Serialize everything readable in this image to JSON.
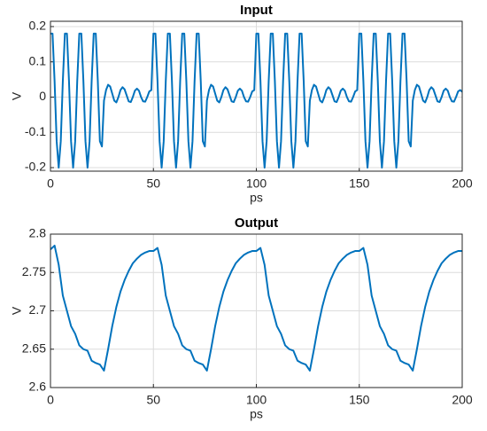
{
  "chart_data": [
    {
      "type": "line",
      "title": "Input",
      "x_label": "ps",
      "y_label": "V",
      "xlim": [
        0,
        200
      ],
      "ylim": [
        -0.21,
        0.215
      ],
      "xticks": [
        0,
        50,
        100,
        150,
        200
      ],
      "yticks": [
        -0.2,
        -0.1,
        0,
        0.1,
        0.2
      ],
      "grid": true,
      "x": [
        0,
        1,
        2,
        3,
        4,
        5,
        6,
        7,
        8,
        9,
        10,
        11,
        12,
        13,
        14,
        15,
        16,
        17,
        18,
        19,
        20,
        21,
        22,
        23,
        24,
        25,
        26,
        27,
        28,
        29,
        30,
        31,
        32,
        33,
        34,
        35,
        36,
        37,
        38,
        39,
        40,
        41,
        42,
        43,
        44,
        45,
        46,
        47,
        48,
        49,
        50,
        51,
        52,
        53,
        54,
        55,
        56,
        57,
        58,
        59,
        60,
        61,
        62,
        63,
        64,
        65,
        66,
        67,
        68,
        69,
        70,
        71,
        72,
        73,
        74,
        75,
        76,
        77,
        78,
        79,
        80,
        81,
        82,
        83,
        84,
        85,
        86,
        87,
        88,
        89,
        90,
        91,
        92,
        93,
        94,
        95,
        96,
        97,
        98,
        99,
        100,
        101,
        102,
        103,
        104,
        105,
        106,
        107,
        108,
        109,
        110,
        111,
        112,
        113,
        114,
        115,
        116,
        117,
        118,
        119,
        120,
        121,
        122,
        123,
        124,
        125,
        126,
        127,
        128,
        129,
        130,
        131,
        132,
        133,
        134,
        135,
        136,
        137,
        138,
        139,
        140,
        141,
        142,
        143,
        144,
        145,
        146,
        147,
        148,
        149,
        150,
        151,
        152,
        153,
        154,
        155,
        156,
        157,
        158,
        159,
        160,
        161,
        162,
        163,
        164,
        165,
        166,
        167,
        168,
        169,
        170,
        171,
        172,
        173,
        174,
        175,
        176,
        177,
        178,
        179,
        180,
        181,
        182,
        183,
        184,
        185,
        186,
        187,
        188,
        189,
        190,
        191,
        192,
        193,
        194,
        195,
        196,
        197,
        198,
        199,
        200
      ],
      "series": [
        {
          "color": "#0072BD",
          "values": [
            0.18,
            0.18,
            0.045,
            -0.125,
            -0.2,
            -0.125,
            0.045,
            0.18,
            0.18,
            0.045,
            -0.125,
            -0.2,
            -0.125,
            0.045,
            0.18,
            0.18,
            0.045,
            -0.125,
            -0.2,
            -0.125,
            0.045,
            0.18,
            0.18,
            0.045,
            -0.125,
            -0.14,
            -0.01,
            0.02,
            0.035,
            0.03,
            0.01,
            -0.01,
            -0.015,
            0,
            0.02,
            0.028,
            0.022,
            0.005,
            -0.012,
            -0.014,
            0,
            0.018,
            0.024,
            0.018,
            0,
            -0.012,
            -0.013,
            0,
            0.016,
            0.02,
            0.18,
            0.18,
            0.045,
            -0.125,
            -0.2,
            -0.125,
            0.045,
            0.18,
            0.18,
            0.045,
            -0.125,
            -0.2,
            -0.125,
            0.045,
            0.18,
            0.18,
            0.045,
            -0.125,
            -0.2,
            -0.125,
            0.045,
            0.18,
            0.18,
            0.045,
            -0.125,
            -0.14,
            -0.01,
            0.02,
            0.035,
            0.03,
            0.01,
            -0.01,
            -0.015,
            0,
            0.02,
            0.028,
            0.022,
            0.005,
            -0.012,
            -0.014,
            0,
            0.018,
            0.024,
            0.018,
            0,
            -0.012,
            -0.013,
            0,
            0.016,
            0.02,
            0.18,
            0.18,
            0.045,
            -0.125,
            -0.2,
            -0.125,
            0.045,
            0.18,
            0.18,
            0.045,
            -0.125,
            -0.2,
            -0.125,
            0.045,
            0.18,
            0.18,
            0.045,
            -0.125,
            -0.2,
            -0.125,
            0.045,
            0.18,
            0.18,
            0.045,
            -0.125,
            -0.14,
            -0.01,
            0.02,
            0.035,
            0.03,
            0.01,
            -0.01,
            -0.015,
            0,
            0.02,
            0.028,
            0.022,
            0.005,
            -0.012,
            -0.014,
            0,
            0.018,
            0.024,
            0.018,
            0,
            -0.012,
            -0.013,
            0,
            0.016,
            0.02,
            0.18,
            0.18,
            0.045,
            -0.125,
            -0.2,
            -0.125,
            0.045,
            0.18,
            0.18,
            0.045,
            -0.125,
            -0.2,
            -0.125,
            0.045,
            0.18,
            0.18,
            0.045,
            -0.125,
            -0.2,
            -0.125,
            0.045,
            0.18,
            0.18,
            0.045,
            -0.125,
            -0.14,
            -0.01,
            0.02,
            0.035,
            0.03,
            0.01,
            -0.01,
            -0.015,
            0,
            0.02,
            0.028,
            0.022,
            0.005,
            -0.012,
            -0.014,
            0,
            0.018,
            0.024,
            0.018,
            0,
            -0.012,
            -0.013,
            0,
            0.016,
            0.02,
            0.015
          ]
        }
      ]
    },
    {
      "type": "line",
      "title": "Output",
      "x_label": "ps",
      "y_label": "V",
      "xlim": [
        0,
        200
      ],
      "ylim": [
        2.6,
        2.8
      ],
      "xticks": [
        0,
        50,
        100,
        150,
        200
      ],
      "yticks": [
        2.6,
        2.65,
        2.7,
        2.75,
        2.8
      ],
      "grid": true,
      "x": [
        0,
        2,
        4,
        6,
        8,
        10,
        12,
        14,
        16,
        18,
        20,
        22,
        24,
        26,
        28,
        30,
        32,
        34,
        36,
        38,
        40,
        42,
        44,
        46,
        48,
        50,
        52,
        54,
        56,
        58,
        60,
        62,
        64,
        66,
        68,
        70,
        72,
        74,
        76,
        78,
        80,
        82,
        84,
        86,
        88,
        90,
        92,
        94,
        96,
        98,
        100,
        102,
        104,
        106,
        108,
        110,
        112,
        114,
        116,
        118,
        120,
        122,
        124,
        126,
        128,
        130,
        132,
        134,
        136,
        138,
        140,
        142,
        144,
        146,
        148,
        150,
        152,
        154,
        156,
        158,
        160,
        162,
        164,
        166,
        168,
        170,
        172,
        174,
        176,
        178,
        180,
        182,
        184,
        186,
        188,
        190,
        192,
        194,
        196,
        198,
        200
      ],
      "series": [
        {
          "color": "#0072BD",
          "values": [
            2.78,
            2.785,
            2.76,
            2.72,
            2.7,
            2.68,
            2.67,
            2.655,
            2.65,
            2.648,
            2.635,
            2.632,
            2.63,
            2.622,
            2.65,
            2.68,
            2.705,
            2.725,
            2.74,
            2.752,
            2.762,
            2.768,
            2.773,
            2.776,
            2.778,
            2.778,
            2.782,
            2.76,
            2.72,
            2.7,
            2.68,
            2.67,
            2.655,
            2.65,
            2.648,
            2.635,
            2.632,
            2.63,
            2.622,
            2.65,
            2.68,
            2.705,
            2.725,
            2.74,
            2.752,
            2.762,
            2.768,
            2.773,
            2.776,
            2.778,
            2.778,
            2.782,
            2.76,
            2.72,
            2.7,
            2.68,
            2.67,
            2.655,
            2.65,
            2.648,
            2.635,
            2.632,
            2.63,
            2.622,
            2.65,
            2.68,
            2.705,
            2.725,
            2.74,
            2.752,
            2.762,
            2.768,
            2.773,
            2.776,
            2.778,
            2.778,
            2.782,
            2.76,
            2.72,
            2.7,
            2.68,
            2.67,
            2.655,
            2.65,
            2.648,
            2.635,
            2.632,
            2.63,
            2.622,
            2.65,
            2.68,
            2.705,
            2.725,
            2.74,
            2.752,
            2.762,
            2.768,
            2.773,
            2.776,
            2.778,
            2.778
          ]
        }
      ]
    }
  ]
}
